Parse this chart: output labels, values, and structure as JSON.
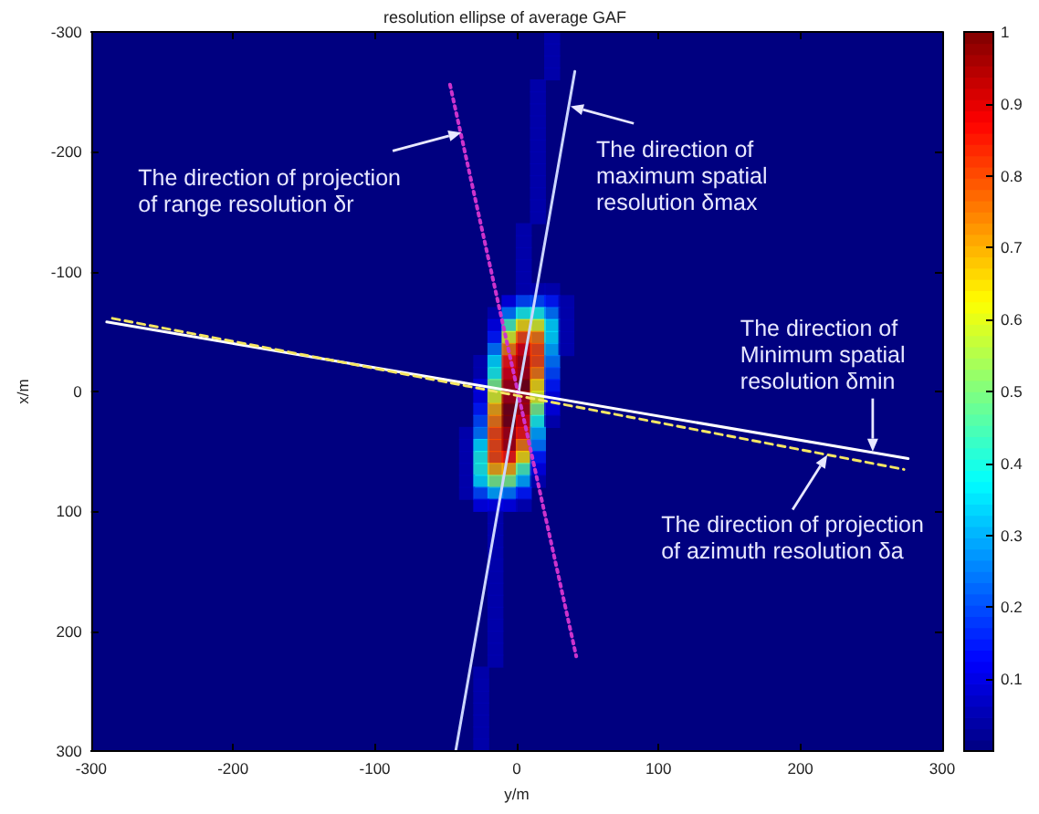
{
  "chart_data": {
    "type": "scatter",
    "title": "resolution ellipse of average GAF",
    "xlabel": "y/m",
    "ylabel": "x/m",
    "xlim": [
      -300,
      300
    ],
    "xticks": [
      -300,
      -200,
      -100,
      0,
      100,
      200,
      300
    ],
    "ylim": [
      300,
      -300
    ],
    "yticks": [
      -300,
      -200,
      -100,
      0,
      100,
      200,
      300
    ],
    "clim": [
      0,
      1
    ],
    "cticks": [
      0.1,
      0.2,
      0.3,
      0.4,
      0.5,
      0.6,
      0.7,
      0.8,
      0.9,
      1
    ],
    "grid": false,
    "marker": "square",
    "x": [
      25,
      25,
      25,
      25,
      15,
      15,
      15,
      15,
      15,
      15,
      15,
      15,
      15,
      15,
      15,
      15,
      5,
      5,
      5,
      5,
      5,
      5,
      15,
      25,
      -5,
      5,
      15,
      25,
      35,
      -15,
      -5,
      5,
      15,
      25,
      35,
      -15,
      -5,
      5,
      15,
      25,
      35,
      -15,
      -5,
      5,
      15,
      25,
      35,
      -15,
      -5,
      5,
      15,
      25,
      35,
      -25,
      -15,
      -5,
      5,
      15,
      25,
      -25,
      -15,
      -5,
      5,
      15,
      25,
      -25,
      -15,
      -5,
      5,
      15,
      25,
      -25,
      -15,
      -5,
      5,
      15,
      25,
      -25,
      -15,
      -5,
      5,
      15,
      25,
      -25,
      -15,
      -5,
      5,
      15,
      25,
      -35,
      -25,
      -15,
      -5,
      5,
      15,
      -35,
      -25,
      -15,
      -5,
      5,
      15,
      -35,
      -25,
      -15,
      -5,
      5,
      15,
      -35,
      -25,
      -15,
      -5,
      5,
      15,
      -35,
      -25,
      -15,
      -5,
      5,
      15,
      -35,
      -25,
      -15,
      -5,
      5,
      -25,
      -15,
      -5,
      5,
      -15,
      -15,
      -15,
      -15,
      -15,
      -15,
      -15,
      -15,
      -15,
      -15,
      -15,
      -15,
      -15,
      -25,
      -25,
      -25,
      -25,
      -25,
      -25,
      -25
    ],
    "values": [
      -295,
      -285,
      -275,
      -265,
      -255,
      -245,
      -235,
      -225,
      -215,
      -205,
      -195,
      -185,
      -175,
      -165,
      -155,
      -145,
      -135,
      -125,
      -115,
      -105,
      -95,
      -85,
      -85,
      -85,
      -75,
      -75,
      -75,
      -75,
      -75,
      -65,
      -65,
      -65,
      -65,
      -65,
      -65,
      -55,
      -55,
      -55,
      -55,
      -55,
      -55,
      -45,
      -45,
      -45,
      -45,
      -45,
      -45,
      -35,
      -35,
      -35,
      -35,
      -35,
      -35,
      -25,
      -25,
      -25,
      -25,
      -25,
      -25,
      -15,
      -15,
      -15,
      -15,
      -15,
      -15,
      -5,
      -5,
      -5,
      -5,
      -5,
      -5,
      5,
      5,
      5,
      5,
      5,
      5,
      15,
      15,
      15,
      15,
      15,
      15,
      25,
      25,
      25,
      25,
      25,
      25,
      35,
      35,
      35,
      35,
      35,
      35,
      45,
      45,
      45,
      45,
      45,
      45,
      55,
      55,
      55,
      55,
      55,
      55,
      65,
      65,
      65,
      65,
      65,
      65,
      75,
      75,
      75,
      75,
      75,
      75,
      85,
      85,
      85,
      85,
      85,
      95,
      95,
      95,
      95,
      105,
      115,
      125,
      135,
      145,
      155,
      165,
      175,
      185,
      195,
      205,
      215,
      225,
      235,
      245,
      255,
      265,
      275,
      285,
      295
    ],
    "colors": [
      "#0000b3",
      "#0000b3",
      "#0000b3",
      "#0000b3",
      "#0000b3",
      "#0000b3",
      "#0000b3",
      "#0000b3",
      "#0000b3",
      "#0000b3",
      "#0000b3",
      "#0000b3",
      "#0000b3",
      "#0000b3",
      "#0000b3",
      "#0000b3",
      "#0000b3",
      "#0000b3",
      "#0000b3",
      "#0000b3",
      "#0000b3",
      "#0000b3",
      "#0000b3",
      "#0000b3",
      "#0000e6",
      "#004dff",
      "#004dff",
      "#001aff",
      "#0000b3",
      "#0000b3",
      "#0080ff",
      "#1affe6",
      "#1affe6",
      "#0080ff",
      "#0000b3",
      "#0000e6",
      "#4dffb3",
      "#ffe600",
      "#e6ff1a",
      "#00e6ff",
      "#0000b3",
      "#001aff",
      "#e6ff1a",
      "#ff4d00",
      "#ff8000",
      "#00e6ff",
      "#0000b3",
      "#0080ff",
      "#ff8000",
      "#e60000",
      "#ff4d00",
      "#00b3ff",
      "#0000b3",
      "#0000b3",
      "#00e6ff",
      "#ff1a00",
      "#b30000",
      "#ff4d00",
      "#0080ff",
      "#0000b3",
      "#1affe6",
      "#e60000",
      "#b30000",
      "#ff8000",
      "#004dff",
      "#0000e6",
      "#80ff80",
      "#b30000",
      "#800000",
      "#ffe600",
      "#001aff",
      "#0000e6",
      "#e6ff1a",
      "#b30000",
      "#b30000",
      "#e6ff1a",
      "#0000e6",
      "#001aff",
      "#ffb300",
      "#800000",
      "#b30000",
      "#80ff80",
      "#0000e6",
      "#004dff",
      "#ff8000",
      "#800000",
      "#e60000",
      "#1affe6",
      "#0000b3",
      "#0000b3",
      "#0080ff",
      "#ff4d00",
      "#b30000",
      "#ff1a00",
      "#00b3ff",
      "#0000b3",
      "#00e6ff",
      "#ff4d00",
      "#b30000",
      "#ff8000",
      "#0080ff",
      "#0000b3",
      "#1affe6",
      "#ff4d00",
      "#ff1a00",
      "#ffe600",
      "#001aff",
      "#0000b3",
      "#1affe6",
      "#ffb300",
      "#ffb300",
      "#4dffb3",
      "#0000e6",
      "#0000b3",
      "#00e6ff",
      "#80ff80",
      "#80ff80",
      "#00b3ff",
      "#0000b3",
      "#0000b3",
      "#004dff",
      "#00b3ff",
      "#0080ff",
      "#001aff",
      "#0000e6",
      "#0000e6",
      "#0000e6",
      "#0000b3",
      "#0000b3",
      "#0000b3",
      "#0000b3",
      "#0000b3",
      "#0000b3",
      "#0000b3",
      "#0000b3",
      "#0000b3",
      "#0000b3",
      "#0000b3",
      "#0000b3",
      "#0000b3",
      "#0000b3",
      "#0000b3",
      "#0000b3",
      "#0000b3",
      "#0000b3",
      "#0000b3",
      "#0000b3",
      "#0000b3"
    ],
    "series": [
      {
        "type": "line",
        "x": [
          -43,
          41
        ],
        "values": [
          300,
          -267
        ],
        "color": "#ccd6ff",
        "line_style": "solid",
        "marker": "none"
      },
      {
        "type": "line",
        "x": [
          -47,
          42
        ],
        "values": [
          -256,
          221
        ],
        "color": "#cc33cc",
        "line_style": "dotted",
        "marker": "none"
      },
      {
        "type": "line",
        "x": [
          -289,
          276
        ],
        "values": [
          -58,
          56
        ],
        "color": "#ffffff",
        "line_style": "solid",
        "marker": "none"
      },
      {
        "type": "line",
        "x": [
          -285,
          273
        ],
        "values": [
          -61,
          65
        ],
        "color": "#f5e663",
        "line_style": "dashed",
        "marker": "none"
      }
    ],
    "annotations": [
      {
        "text": "The direction of projection\nof range resolution δr",
        "x": -39,
        "y": -216
      },
      {
        "text": "The direction of\nmaximum spatial\nresolution δmax",
        "x": 38,
        "y": -238
      },
      {
        "text": "The direction of\nMinimum spatial\nresolution δmin",
        "x": 251,
        "y": 50
      },
      {
        "text": "The direction of projection\nof azimuth resolution δa",
        "x": 219,
        "y": 53
      }
    ]
  }
}
